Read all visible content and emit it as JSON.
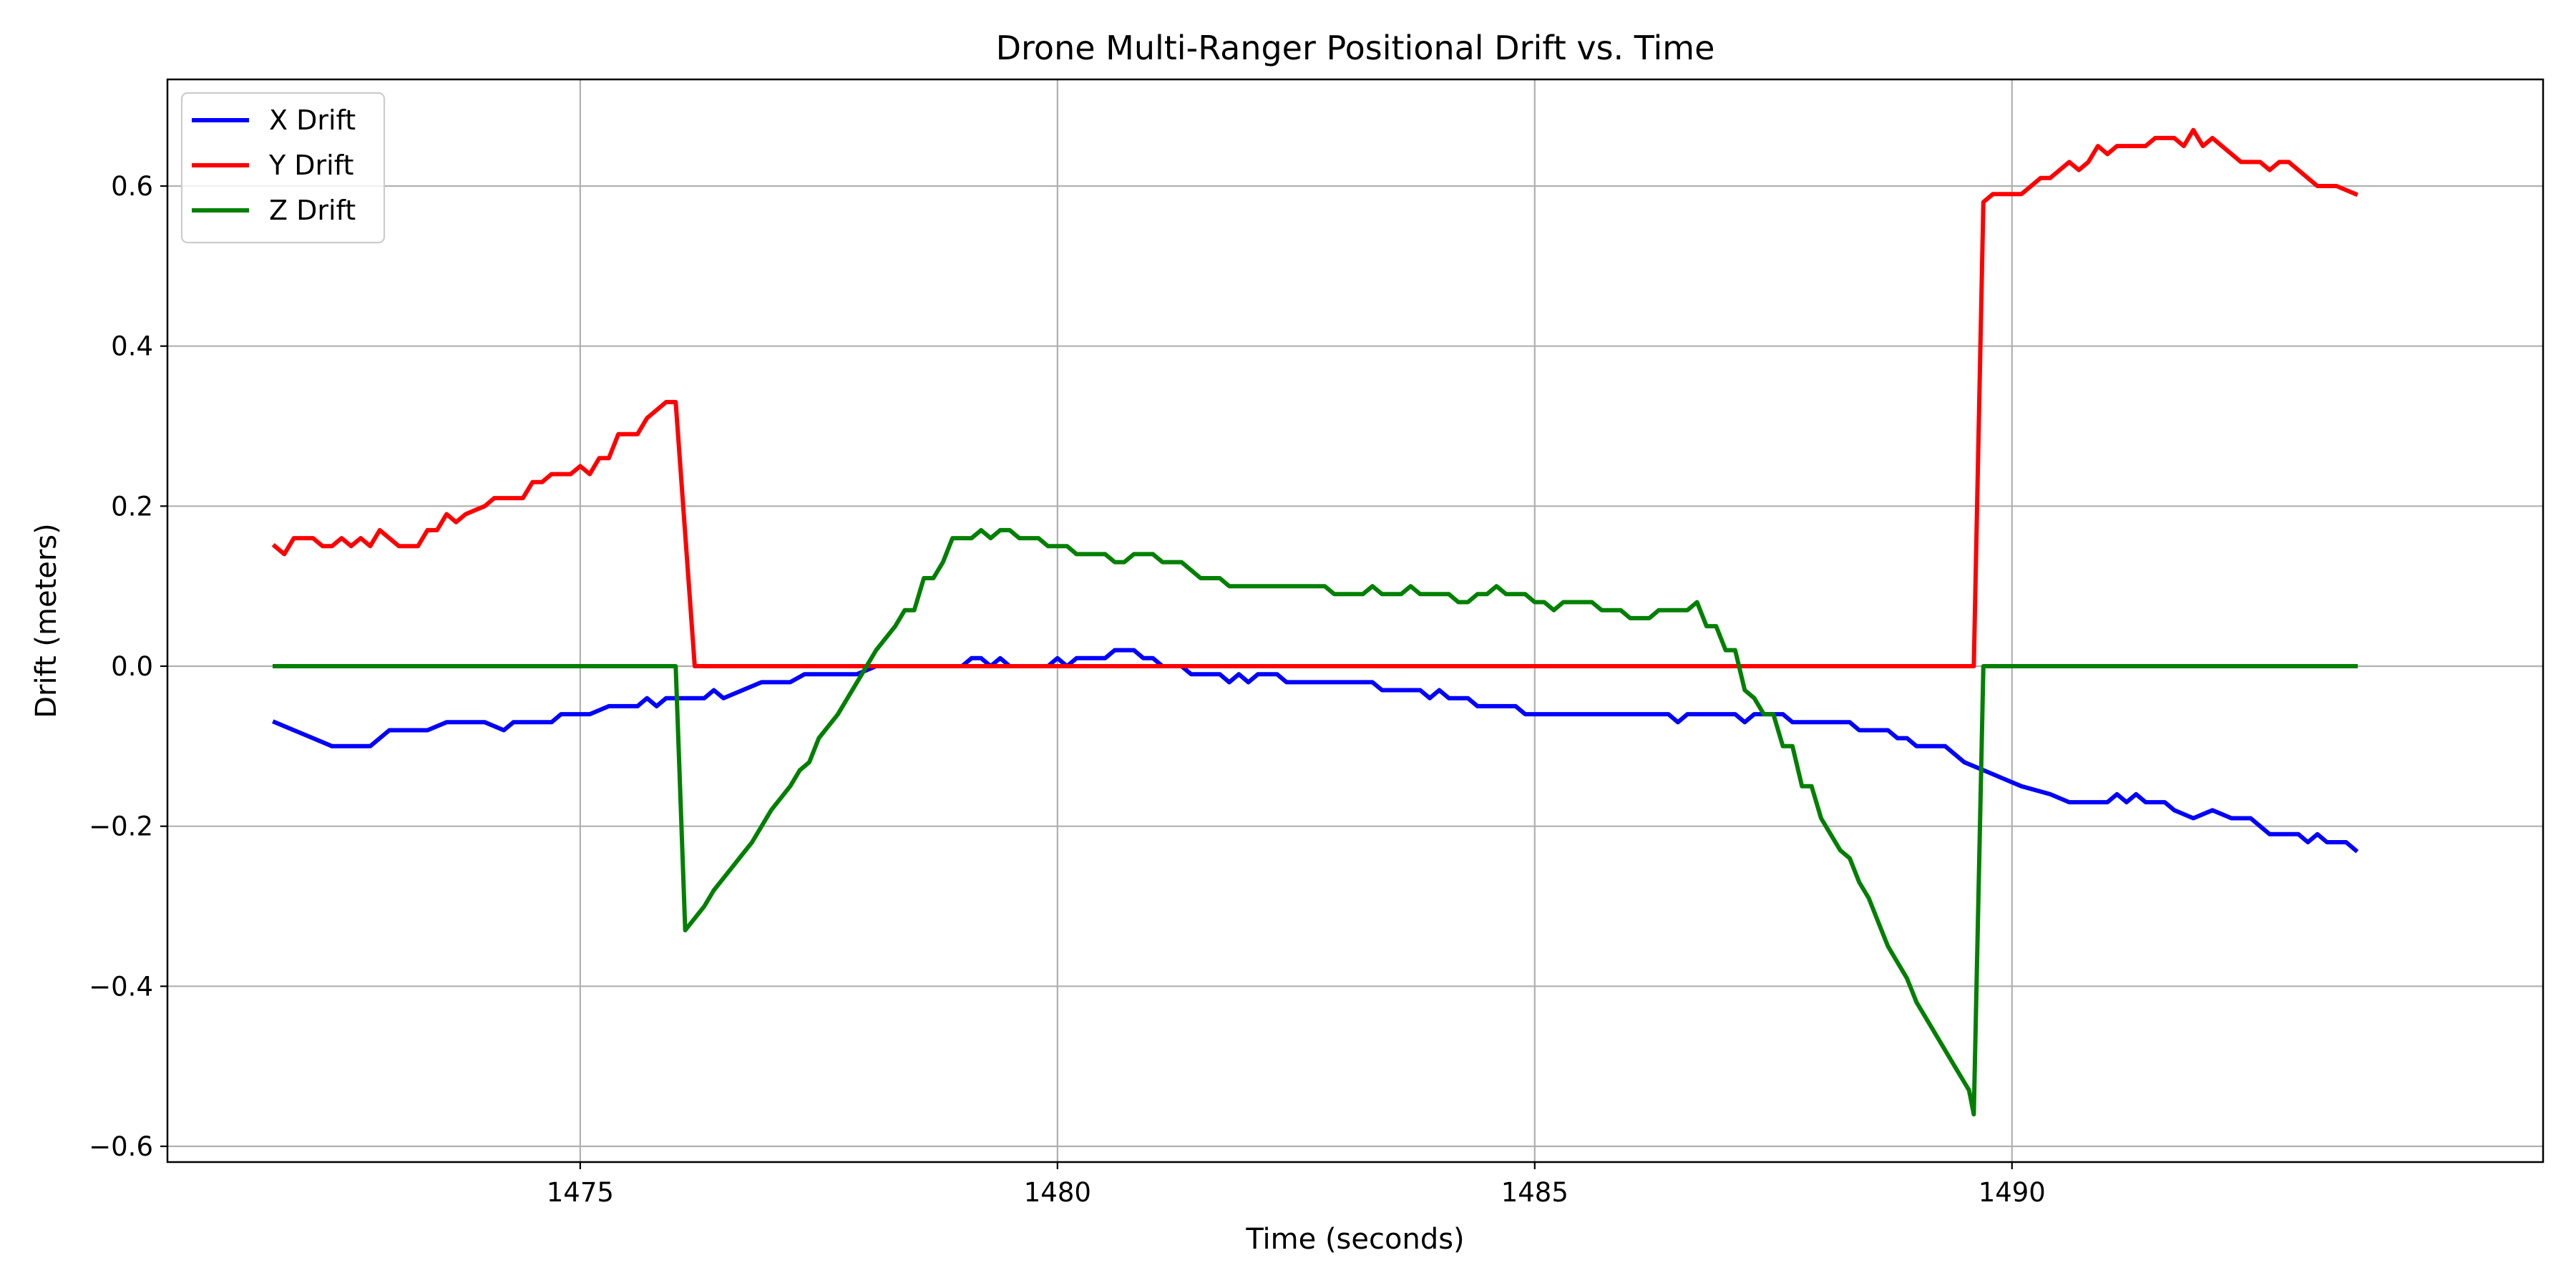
{
  "chart_data": {
    "type": "line",
    "title": "Drone Multi-Ranger Positional Drift vs. Time",
    "xlabel": "Time (seconds)",
    "ylabel": "Drift (meters)",
    "xlim": [
      1471.8,
      1493.6
    ],
    "ylim": [
      -0.6,
      0.6
    ],
    "xticks": [
      1475,
      1480,
      1485,
      1490
    ],
    "yticks": [
      -0.6,
      -0.4,
      -0.2,
      0.0,
      0.2,
      0.4,
      0.6
    ],
    "ytick_labels": [
      "−0.6",
      "−0.4",
      "−0.2",
      "0.0",
      "0.2",
      "0.4",
      "0.6"
    ],
    "grid": true,
    "legend_position": "top-left",
    "series": [
      {
        "name": "X Drift",
        "color": "#0000ff",
        "points": [
          [
            1471.8,
            -0.07
          ],
          [
            1472.0,
            -0.08
          ],
          [
            1472.2,
            -0.09
          ],
          [
            1472.4,
            -0.1
          ],
          [
            1472.6,
            -0.1
          ],
          [
            1472.8,
            -0.1
          ],
          [
            1473.0,
            -0.08
          ],
          [
            1473.4,
            -0.08
          ],
          [
            1473.6,
            -0.07
          ],
          [
            1474.0,
            -0.07
          ],
          [
            1474.2,
            -0.08
          ],
          [
            1474.3,
            -0.07
          ],
          [
            1474.7,
            -0.07
          ],
          [
            1474.8,
            -0.06
          ],
          [
            1475.1,
            -0.06
          ],
          [
            1475.3,
            -0.05
          ],
          [
            1475.6,
            -0.05
          ],
          [
            1475.7,
            -0.04
          ],
          [
            1475.8,
            -0.05
          ],
          [
            1475.9,
            -0.04
          ],
          [
            1476.3,
            -0.04
          ],
          [
            1476.4,
            -0.03
          ],
          [
            1476.5,
            -0.04
          ],
          [
            1476.9,
            -0.02
          ],
          [
            1477.2,
            -0.02
          ],
          [
            1477.35,
            -0.01
          ],
          [
            1477.9,
            -0.01
          ],
          [
            1478.1,
            0.0
          ],
          [
            1479.0,
            0.0
          ],
          [
            1479.1,
            0.01
          ],
          [
            1479.2,
            0.01
          ],
          [
            1479.3,
            0.0
          ],
          [
            1479.4,
            0.01
          ],
          [
            1479.5,
            0.0
          ],
          [
            1479.9,
            0.0
          ],
          [
            1480.0,
            0.01
          ],
          [
            1480.1,
            0.0
          ],
          [
            1480.2,
            0.01
          ],
          [
            1480.5,
            0.01
          ],
          [
            1480.6,
            0.02
          ],
          [
            1480.8,
            0.02
          ],
          [
            1480.9,
            0.01
          ],
          [
            1481.0,
            0.01
          ],
          [
            1481.1,
            0.0
          ],
          [
            1481.3,
            0.0
          ],
          [
            1481.4,
            -0.01
          ],
          [
            1481.7,
            -0.01
          ],
          [
            1481.8,
            -0.02
          ],
          [
            1481.9,
            -0.01
          ],
          [
            1482.0,
            -0.02
          ],
          [
            1482.1,
            -0.01
          ],
          [
            1482.3,
            -0.01
          ],
          [
            1482.4,
            -0.02
          ],
          [
            1483.3,
            -0.02
          ],
          [
            1483.4,
            -0.03
          ],
          [
            1483.8,
            -0.03
          ],
          [
            1483.9,
            -0.04
          ],
          [
            1484.0,
            -0.03
          ],
          [
            1484.1,
            -0.04
          ],
          [
            1484.3,
            -0.04
          ],
          [
            1484.4,
            -0.05
          ],
          [
            1484.8,
            -0.05
          ],
          [
            1484.9,
            -0.06
          ],
          [
            1486.4,
            -0.06
          ],
          [
            1486.5,
            -0.07
          ],
          [
            1486.6,
            -0.06
          ],
          [
            1487.1,
            -0.06
          ],
          [
            1487.2,
            -0.07
          ],
          [
            1487.3,
            -0.06
          ],
          [
            1487.6,
            -0.06
          ],
          [
            1487.7,
            -0.07
          ],
          [
            1488.3,
            -0.07
          ],
          [
            1488.4,
            -0.08
          ],
          [
            1488.7,
            -0.08
          ],
          [
            1488.8,
            -0.09
          ],
          [
            1488.9,
            -0.09
          ],
          [
            1489.0,
            -0.1
          ],
          [
            1489.3,
            -0.1
          ],
          [
            1489.5,
            -0.12
          ],
          [
            1489.7,
            -0.13
          ],
          [
            1489.9,
            -0.14
          ],
          [
            1490.1,
            -0.15
          ],
          [
            1490.4,
            -0.16
          ],
          [
            1490.6,
            -0.17
          ],
          [
            1491.0,
            -0.17
          ],
          [
            1491.1,
            -0.16
          ],
          [
            1491.2,
            -0.17
          ],
          [
            1491.3,
            -0.16
          ],
          [
            1491.4,
            -0.17
          ],
          [
            1491.6,
            -0.17
          ],
          [
            1491.7,
            -0.18
          ],
          [
            1491.9,
            -0.19
          ],
          [
            1492.1,
            -0.18
          ],
          [
            1492.3,
            -0.19
          ],
          [
            1492.6,
            -0.2
          ],
          [
            1492.7,
            -0.21
          ],
          [
            1493.0,
            -0.21
          ],
          [
            1493.1,
            -0.22
          ],
          [
            1493.2,
            -0.21
          ],
          [
            1493.3,
            -0.22
          ],
          [
            1493.5,
            -0.22
          ],
          [
            1493.6,
            -0.23
          ],
          [
            1492.5,
            -0.19
          ]
        ]
      },
      {
        "name": "Y Drift",
        "color": "#ff0000",
        "points": [
          [
            1471.8,
            0.15
          ],
          [
            1471.9,
            0.14
          ],
          [
            1472.0,
            0.16
          ],
          [
            1472.2,
            0.16
          ],
          [
            1472.3,
            0.15
          ],
          [
            1472.4,
            0.15
          ],
          [
            1472.5,
            0.16
          ],
          [
            1472.6,
            0.15
          ],
          [
            1472.7,
            0.16
          ],
          [
            1472.8,
            0.15
          ],
          [
            1472.9,
            0.17
          ],
          [
            1473.1,
            0.15
          ],
          [
            1473.3,
            0.15
          ],
          [
            1473.4,
            0.17
          ],
          [
            1473.5,
            0.17
          ],
          [
            1473.6,
            0.19
          ],
          [
            1473.7,
            0.18
          ],
          [
            1473.8,
            0.19
          ],
          [
            1474.0,
            0.2
          ],
          [
            1474.1,
            0.21
          ],
          [
            1474.4,
            0.21
          ],
          [
            1474.5,
            0.23
          ],
          [
            1474.6,
            0.23
          ],
          [
            1474.7,
            0.24
          ],
          [
            1474.9,
            0.24
          ],
          [
            1475.0,
            0.25
          ],
          [
            1475.1,
            0.24
          ],
          [
            1475.2,
            0.26
          ],
          [
            1475.3,
            0.26
          ],
          [
            1475.4,
            0.29
          ],
          [
            1475.6,
            0.29
          ],
          [
            1475.7,
            0.31
          ],
          [
            1475.9,
            0.33
          ],
          [
            1476.0,
            0.33
          ],
          [
            1476.2,
            0.0
          ],
          [
            1489.6,
            0.0
          ],
          [
            1489.7,
            0.58
          ],
          [
            1489.8,
            0.59
          ],
          [
            1490.1,
            0.59
          ],
          [
            1490.3,
            0.61
          ],
          [
            1490.4,
            0.61
          ],
          [
            1490.6,
            0.63
          ],
          [
            1490.7,
            0.62
          ],
          [
            1490.8,
            0.63
          ],
          [
            1490.9,
            0.65
          ],
          [
            1491.0,
            0.64
          ],
          [
            1491.1,
            0.65
          ],
          [
            1491.4,
            0.65
          ],
          [
            1491.5,
            0.66
          ],
          [
            1491.7,
            0.66
          ],
          [
            1491.8,
            0.65
          ],
          [
            1491.9,
            0.67
          ],
          [
            1492.0,
            0.65
          ],
          [
            1492.1,
            0.66
          ],
          [
            1492.2,
            0.65
          ],
          [
            1492.4,
            0.63
          ],
          [
            1492.6,
            0.63
          ],
          [
            1492.7,
            0.62
          ],
          [
            1492.8,
            0.63
          ],
          [
            1492.9,
            0.63
          ],
          [
            1493.2,
            0.6
          ],
          [
            1493.4,
            0.6
          ],
          [
            1493.6,
            0.59
          ]
        ]
      },
      {
        "name": "Z Drift",
        "color": "#008000",
        "points": [
          [
            1471.8,
            0.0
          ],
          [
            1476.0,
            0.0
          ],
          [
            1476.1,
            -0.33
          ],
          [
            1476.3,
            -0.3
          ],
          [
            1476.4,
            -0.28
          ],
          [
            1476.6,
            -0.25
          ],
          [
            1476.8,
            -0.22
          ],
          [
            1477.0,
            -0.18
          ],
          [
            1477.2,
            -0.15
          ],
          [
            1477.3,
            -0.13
          ],
          [
            1477.4,
            -0.12
          ],
          [
            1477.5,
            -0.09
          ],
          [
            1477.7,
            -0.06
          ],
          [
            1477.9,
            -0.02
          ],
          [
            1478.1,
            0.02
          ],
          [
            1478.3,
            0.05
          ],
          [
            1478.4,
            0.07
          ],
          [
            1478.5,
            0.07
          ],
          [
            1478.6,
            0.11
          ],
          [
            1478.7,
            0.11
          ],
          [
            1478.8,
            0.13
          ],
          [
            1478.9,
            0.16
          ],
          [
            1479.1,
            0.16
          ],
          [
            1479.2,
            0.17
          ],
          [
            1479.3,
            0.16
          ],
          [
            1479.4,
            0.17
          ],
          [
            1479.5,
            0.17
          ],
          [
            1479.6,
            0.16
          ],
          [
            1479.8,
            0.16
          ],
          [
            1479.9,
            0.15
          ],
          [
            1480.1,
            0.15
          ],
          [
            1480.2,
            0.14
          ],
          [
            1480.5,
            0.14
          ],
          [
            1480.6,
            0.13
          ],
          [
            1480.7,
            0.13
          ],
          [
            1480.8,
            0.14
          ],
          [
            1481.0,
            0.14
          ],
          [
            1481.1,
            0.13
          ],
          [
            1481.3,
            0.13
          ],
          [
            1481.5,
            0.11
          ],
          [
            1481.7,
            0.11
          ],
          [
            1481.8,
            0.1
          ],
          [
            1482.8,
            0.1
          ],
          [
            1482.9,
            0.09
          ],
          [
            1483.2,
            0.09
          ],
          [
            1483.3,
            0.1
          ],
          [
            1483.4,
            0.09
          ],
          [
            1483.6,
            0.09
          ],
          [
            1483.7,
            0.1
          ],
          [
            1483.8,
            0.09
          ],
          [
            1484.1,
            0.09
          ],
          [
            1484.2,
            0.08
          ],
          [
            1484.3,
            0.08
          ],
          [
            1484.4,
            0.09
          ],
          [
            1484.5,
            0.09
          ],
          [
            1484.6,
            0.1
          ],
          [
            1484.7,
            0.09
          ],
          [
            1484.9,
            0.09
          ],
          [
            1485.0,
            0.08
          ],
          [
            1485.1,
            0.08
          ],
          [
            1485.2,
            0.07
          ],
          [
            1485.3,
            0.08
          ],
          [
            1485.6,
            0.08
          ],
          [
            1485.7,
            0.07
          ],
          [
            1485.9,
            0.07
          ],
          [
            1486.0,
            0.06
          ],
          [
            1486.2,
            0.06
          ],
          [
            1486.3,
            0.07
          ],
          [
            1486.6,
            0.07
          ],
          [
            1486.7,
            0.08
          ],
          [
            1486.8,
            0.05
          ],
          [
            1486.9,
            0.05
          ],
          [
            1487.0,
            0.02
          ],
          [
            1487.1,
            0.02
          ],
          [
            1487.2,
            -0.03
          ],
          [
            1487.3,
            -0.04
          ],
          [
            1487.4,
            -0.06
          ],
          [
            1487.5,
            -0.06
          ],
          [
            1487.6,
            -0.1
          ],
          [
            1487.7,
            -0.1
          ],
          [
            1487.8,
            -0.15
          ],
          [
            1487.9,
            -0.15
          ],
          [
            1488.0,
            -0.19
          ],
          [
            1488.1,
            -0.21
          ],
          [
            1488.2,
            -0.23
          ],
          [
            1488.3,
            -0.24
          ],
          [
            1488.4,
            -0.27
          ],
          [
            1488.5,
            -0.29
          ],
          [
            1488.6,
            -0.32
          ],
          [
            1488.7,
            -0.35
          ],
          [
            1488.8,
            -0.37
          ],
          [
            1488.9,
            -0.39
          ],
          [
            1489.0,
            -0.42
          ],
          [
            1489.2,
            -0.46
          ],
          [
            1489.4,
            -0.5
          ],
          [
            1489.5,
            -0.52
          ],
          [
            1489.55,
            -0.53
          ],
          [
            1489.6,
            -0.56
          ],
          [
            1489.7,
            0.0
          ],
          [
            1493.6,
            0.0
          ]
        ]
      }
    ]
  }
}
